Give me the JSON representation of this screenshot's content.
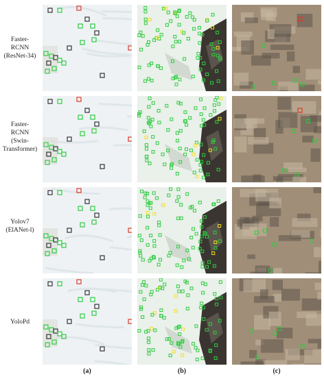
{
  "figure": {
    "rows": [
      {
        "label_lines": [
          "Faster-",
          "RCNN",
          "(ResNet-34)"
        ]
      },
      {
        "label_lines": [
          "Faster-",
          "RCNN",
          "(Swin-",
          "Transformer)"
        ]
      },
      {
        "label_lines": [
          "Yolov7",
          "(ElANet-l)"
        ]
      },
      {
        "label_lines": [
          "YoloPd"
        ]
      }
    ],
    "columns": [
      {
        "label": "(a)",
        "scene": "snow"
      },
      {
        "label": "(b)",
        "scene": "snow-rock"
      },
      {
        "label": "(c)",
        "scene": "rock"
      }
    ],
    "colors": {
      "snow": "#eef2f4",
      "rock_dark": "#3a3530",
      "rock_tan": "#a08e78",
      "box_green": "#2ecc40",
      "box_yellow": "#f2e21a",
      "box_red": "#e23a2a",
      "box_dark": "#333333"
    },
    "icons": [
      "detection-box-icon"
    ]
  }
}
